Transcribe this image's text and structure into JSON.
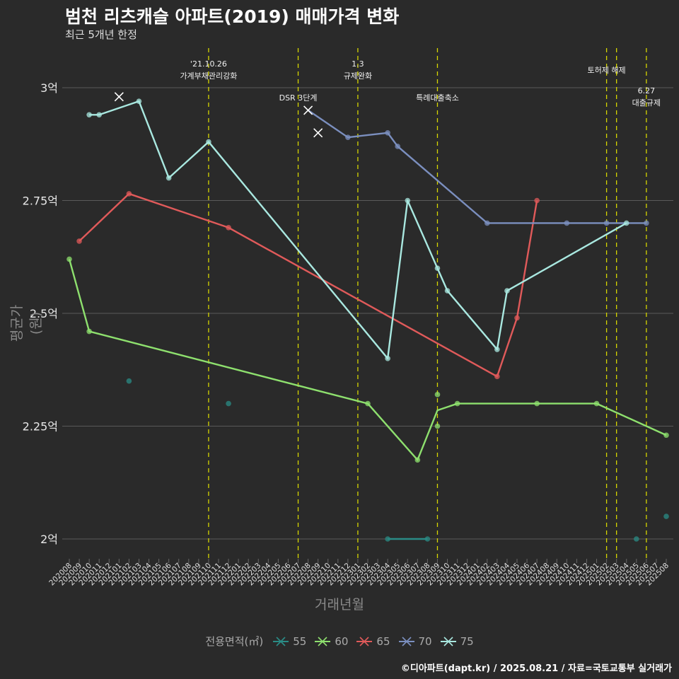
{
  "header": {
    "title": "범천 리츠캐슬 아파트(2019) 매매가격 변화",
    "subtitle": "최근 5개년 한정"
  },
  "caption": "©디아파트(dapt.kr) / 2025.08.21 / 자료=국토교통부 실거래가",
  "chart_data": {
    "type": "line",
    "xlabel": "거래년월",
    "ylabel": "평균가(원)",
    "ylim": [
      1.95,
      3.07
    ],
    "yticks": [
      {
        "value": 2.0,
        "label": "2억"
      },
      {
        "value": 2.25,
        "label": "2.25억"
      },
      {
        "value": 2.5,
        "label": "2.5억"
      },
      {
        "value": 2.75,
        "label": "2.75억"
      },
      {
        "value": 3.0,
        "label": "3억"
      }
    ],
    "categories": [
      "202008",
      "202009",
      "202010",
      "202011",
      "202012",
      "202101",
      "202102",
      "202103",
      "202104",
      "202105",
      "202106",
      "202107",
      "202108",
      "202109",
      "202110",
      "202111",
      "202112",
      "202201",
      "202202",
      "202203",
      "202204",
      "202205",
      "202206",
      "202207",
      "202208",
      "202209",
      "202210",
      "202211",
      "202212",
      "202301",
      "202302",
      "202303",
      "202304",
      "202305",
      "202306",
      "202307",
      "202308",
      "202309",
      "202310",
      "202311",
      "202312",
      "202401",
      "202402",
      "202403",
      "202404",
      "202405",
      "202406",
      "202407",
      "202408",
      "202409",
      "202410",
      "202411",
      "202412",
      "202501",
      "202502",
      "202503",
      "202504",
      "202505",
      "202506",
      "202507",
      "202508"
    ],
    "legend_title": "전용면적(㎡)",
    "series": [
      {
        "name": "55",
        "color": "#2a8c86",
        "line": [
          [
            "202304",
            2.0
          ],
          [
            "202308",
            2.0
          ]
        ],
        "points": [
          [
            "202102",
            2.35
          ],
          [
            "202112",
            2.3
          ],
          [
            "202304",
            2.0
          ],
          [
            "202308",
            2.0
          ],
          [
            "202505",
            2.0
          ],
          [
            "202508",
            2.05
          ]
        ]
      },
      {
        "name": "60",
        "color": "#8ee06e",
        "line": [
          [
            "202008",
            2.62
          ],
          [
            "202010",
            2.46
          ],
          [
            "202302",
            2.3
          ],
          [
            "202307",
            2.175
          ],
          [
            "202309",
            2.285
          ],
          [
            "202311",
            2.3
          ],
          [
            "202407",
            2.3
          ],
          [
            "202501",
            2.3
          ],
          [
            "202508",
            2.23
          ]
        ],
        "points": [
          [
            "202008",
            2.62
          ],
          [
            "202010",
            2.46
          ],
          [
            "202302",
            2.3
          ],
          [
            "202307",
            2.175
          ],
          [
            "202309",
            2.32
          ],
          [
            "202309",
            2.25
          ],
          [
            "202311",
            2.3
          ],
          [
            "202407",
            2.3
          ],
          [
            "202501",
            2.3
          ],
          [
            "202508",
            2.23
          ]
        ]
      },
      {
        "name": "65",
        "color": "#e05a5a",
        "line": [
          [
            "202009",
            2.66
          ],
          [
            "202102",
            2.765
          ],
          [
            "202112",
            2.69
          ],
          [
            "202403",
            2.36
          ],
          [
            "202405",
            2.49
          ],
          [
            "202407",
            2.75
          ]
        ],
        "points": [
          [
            "202009",
            2.66
          ],
          [
            "202102",
            2.765
          ],
          [
            "202112",
            2.69
          ],
          [
            "202403",
            2.36
          ],
          [
            "202405",
            2.49
          ],
          [
            "202407",
            2.75
          ]
        ]
      },
      {
        "name": "70",
        "color": "#7b8fbf",
        "line": [
          [
            "202208",
            2.95
          ],
          [
            "202212",
            2.89
          ],
          [
            "202304",
            2.9
          ],
          [
            "202305",
            2.87
          ],
          [
            "202402",
            2.7
          ],
          [
            "202410",
            2.7
          ],
          [
            "202502",
            2.7
          ],
          [
            "202506",
            2.7
          ]
        ],
        "points": [
          [
            "202212",
            2.89
          ],
          [
            "202304",
            2.9
          ],
          [
            "202305",
            2.87
          ],
          [
            "202402",
            2.7
          ],
          [
            "202410",
            2.7
          ],
          [
            "202502",
            2.7
          ],
          [
            "202506",
            2.7
          ]
        ],
        "markers_x": [
          [
            "202208",
            2.95
          ],
          [
            "202209",
            2.9
          ]
        ]
      },
      {
        "name": "75",
        "color": "#a9e8e0",
        "line": [
          [
            "202010",
            2.94
          ],
          [
            "202011",
            2.94
          ],
          [
            "202103",
            2.97
          ],
          [
            "202106",
            2.8
          ],
          [
            "202110",
            2.88
          ],
          [
            "202304",
            2.4
          ],
          [
            "202306",
            2.75
          ],
          [
            "202309",
            2.6
          ],
          [
            "202310",
            2.55
          ],
          [
            "202403",
            2.42
          ],
          [
            "202404",
            2.55
          ],
          [
            "202504",
            2.7
          ]
        ],
        "points": [
          [
            "202010",
            2.94
          ],
          [
            "202011",
            2.94
          ],
          [
            "202103",
            2.97
          ],
          [
            "202106",
            2.8
          ],
          [
            "202110",
            2.88
          ],
          [
            "202304",
            2.4
          ],
          [
            "202306",
            2.75
          ],
          [
            "202309",
            2.6
          ],
          [
            "202310",
            2.55
          ],
          [
            "202403",
            2.42
          ],
          [
            "202404",
            2.55
          ],
          [
            "202504",
            2.7
          ]
        ],
        "markers_x": [
          [
            "202101",
            2.98
          ]
        ]
      }
    ],
    "events": [
      {
        "x": "202110",
        "lines": [
          "'21.10.26",
          "가계부채관리강화"
        ],
        "row": 0
      },
      {
        "x": "202207",
        "lines": [
          "DSR 3단계"
        ],
        "row": 2
      },
      {
        "x": "202301",
        "lines": [
          "1.3",
          "규제완화"
        ],
        "row": 0
      },
      {
        "x": "202309",
        "lines": [
          "특례대출축소"
        ],
        "row": 2
      },
      {
        "x": "202502",
        "lines": [
          "토허제 해제"
        ],
        "row": 1
      },
      {
        "x": "202503",
        "lines": [],
        "row": 1
      },
      {
        "x": "202506",
        "lines": [
          "6.27",
          "대출규제"
        ],
        "row": 3
      }
    ]
  }
}
